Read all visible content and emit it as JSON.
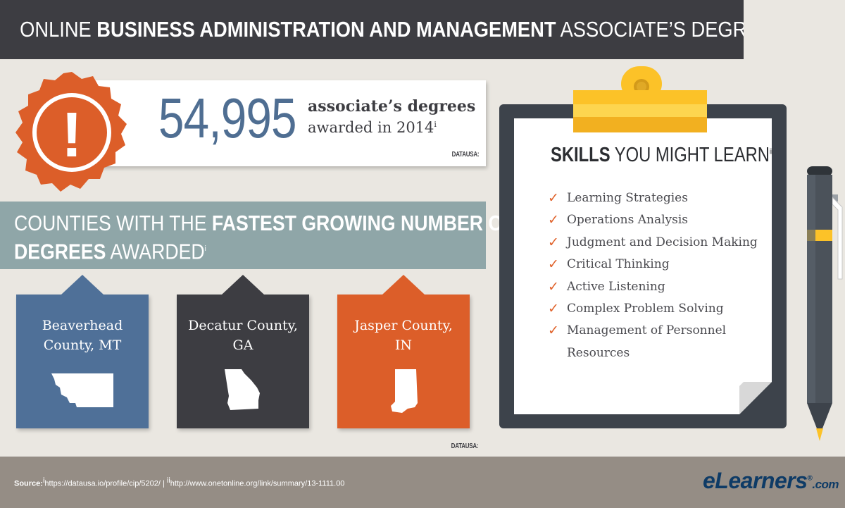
{
  "header": {
    "prefix": "ONLINE ",
    "bold": "BUSINESS ADMINISTRATION AND MANAGEMENT",
    "suffix": " ASSOCIATE’S DEGREE PROGRAMS"
  },
  "stat": {
    "number": "54,995",
    "line1": "associate’s degrees",
    "line2": "awarded in 2014",
    "footnote": "i",
    "source": "DATAUSA:"
  },
  "badge": {
    "symbol": "!"
  },
  "counties": {
    "title_line1_plain": "COUNTIES WITH THE ",
    "title_line1_bold": "FASTEST GROWING NUMBER OF",
    "title_line2_bold": "DEGREES",
    "title_line2_plain": " AWARDED",
    "footnote": "i",
    "source": "DATAUSA:",
    "items": [
      {
        "line1": "Beaverhead",
        "line2": "County, MT",
        "color": "#4f7098",
        "state_icon": "montana-icon"
      },
      {
        "line1": "Decatur County,",
        "line2": "GA",
        "color": "#3d3d42",
        "state_icon": "georgia-icon"
      },
      {
        "line1": "Jasper County,",
        "line2": "IN",
        "color": "#dc5e29",
        "state_icon": "indiana-icon"
      }
    ]
  },
  "skills": {
    "title_bold": "SKILLS",
    "title_plain": " YOU MIGHT LEARN",
    "footnote": "ii",
    "check": "✓",
    "items": [
      "Learning Strategies",
      "Operations Analysis",
      "Judgment and Decision Making",
      "Critical Thinking",
      "Active Listening",
      "Complex Problem Solving",
      "Management of Personnel Resources"
    ]
  },
  "footer": {
    "source_label": "Source:",
    "source1_mark": "i",
    "source1": "https://datausa.io/profile/cip/5202/",
    "separator": " | ",
    "source2_mark": "ii",
    "source2": "http://www.onetonline.org/link/summary/13-1111.00"
  },
  "logo": {
    "e": "e",
    "name": "Learners",
    "dotcom": ".com",
    "reg": "®"
  },
  "colors": {
    "header_bg": "#3d3d42",
    "accent_orange": "#dc5e29",
    "blue": "#4f7098",
    "teal_banner": "#8fa6a8",
    "footer_bg": "#958d85",
    "clip_yellow": "#fcc228"
  }
}
